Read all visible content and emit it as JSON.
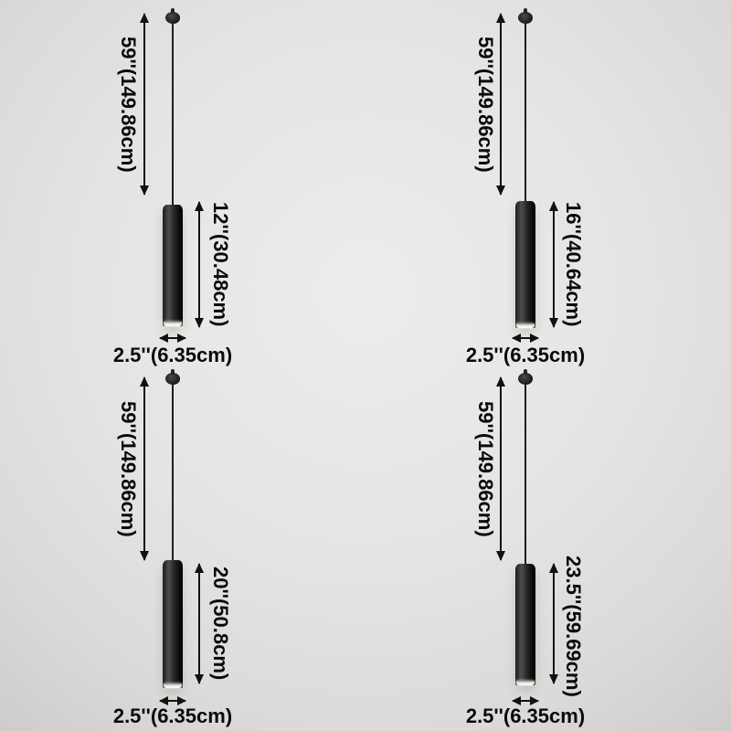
{
  "page": {
    "title": "Pendant light dimension diagram",
    "background_color": "#e6e4e2",
    "text_color": "#0a0a0a",
    "fixture_color": "black"
  },
  "products": [
    {
      "name": "pendant-12-inch",
      "cord_length": "59''(149.86cm)",
      "fixture_height": "12''(30.48cm)",
      "fixture_width": "2.5''(6.35cm)"
    },
    {
      "name": "pendant-16-inch",
      "cord_length": "59''(149.86cm)",
      "fixture_height": "16''(40.64cm)",
      "fixture_width": "2.5''(6.35cm)"
    },
    {
      "name": "pendant-20-inch",
      "cord_length": "59''(149.86cm)",
      "fixture_height": "20''(50.8cm)",
      "fixture_width": "2.5''(6.35cm)"
    },
    {
      "name": "pendant-23.5-inch",
      "cord_length": "59''(149.86cm)",
      "fixture_height": "23.5''(59.69cm)",
      "fixture_width": "2.5''(6.35cm)"
    }
  ]
}
